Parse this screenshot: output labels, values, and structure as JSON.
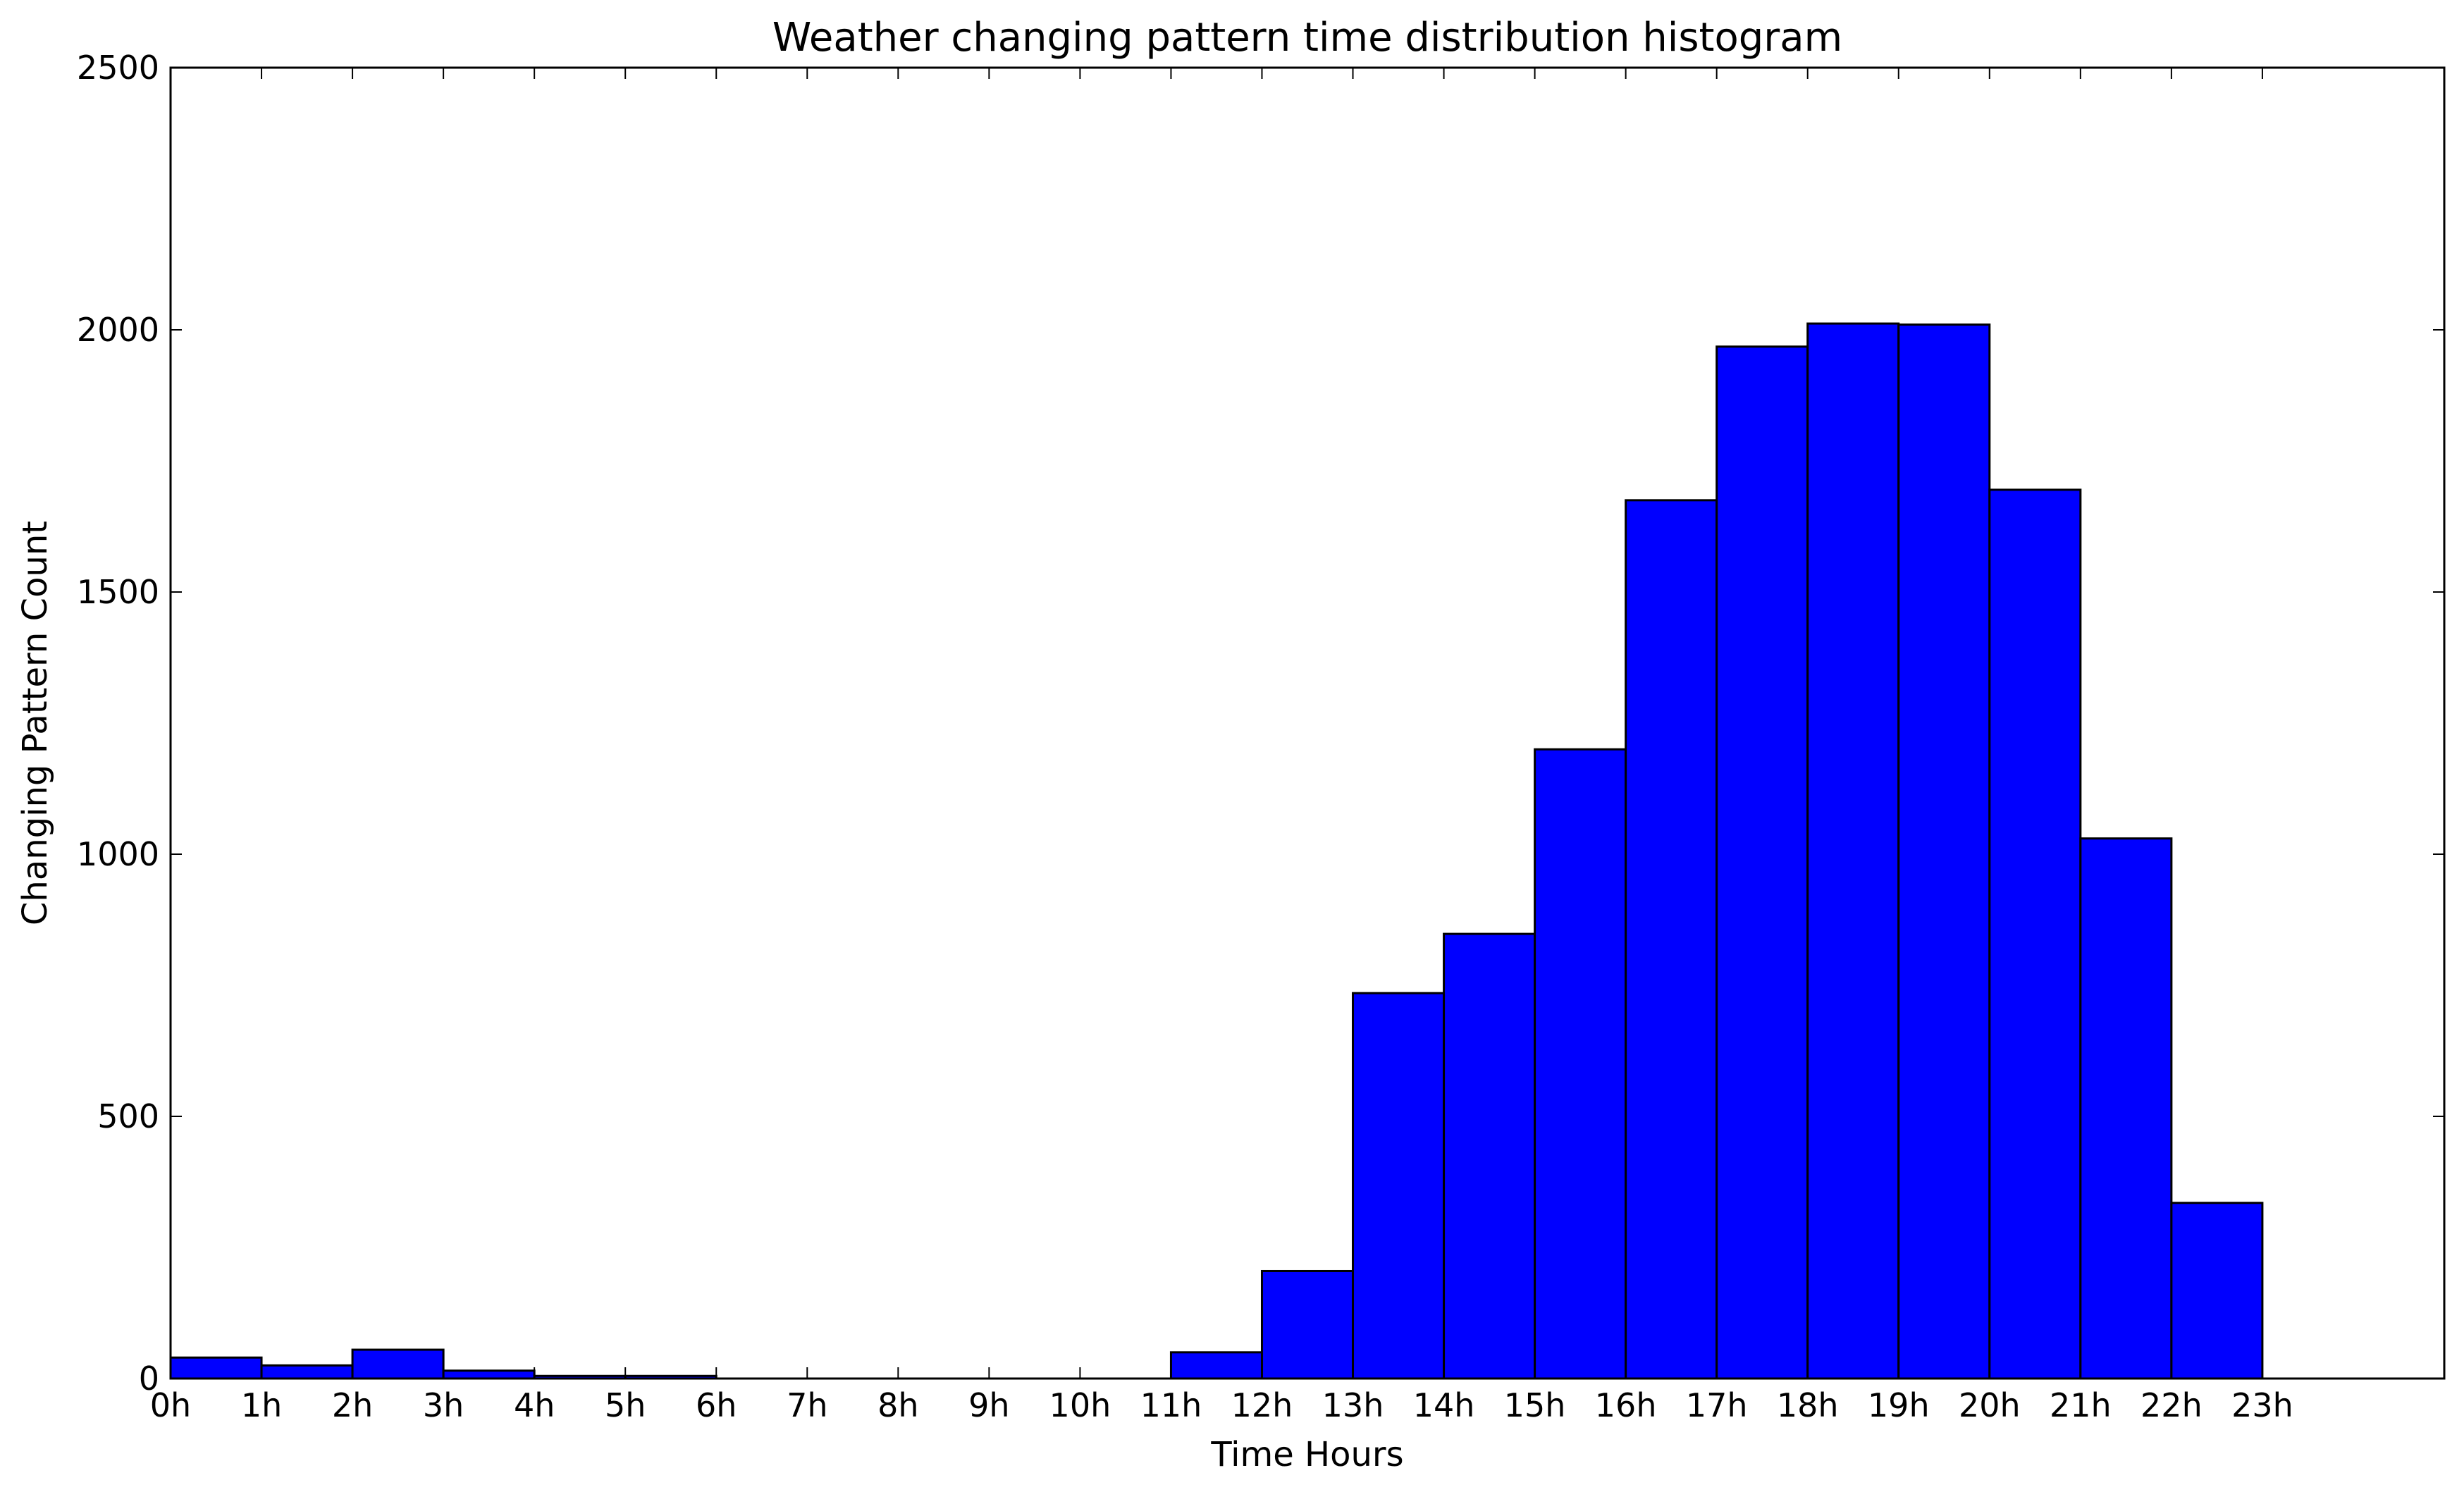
{
  "chart_data": {
    "type": "bar",
    "title": "Weather changing pattern time distribution histogram",
    "xlabel": "Time Hours",
    "ylabel": "Changing Pattern Count",
    "x_tick_labels": [
      "0h",
      "1h",
      "2h",
      "3h",
      "4h",
      "5h",
      "6h",
      "7h",
      "8h",
      "9h",
      "10h",
      "11h",
      "12h",
      "13h",
      "14h",
      "15h",
      "16h",
      "17h",
      "18h",
      "19h",
      "20h",
      "21h",
      "22h",
      "23h"
    ],
    "x_range": [
      0,
      25
    ],
    "ylim": [
      0,
      2500
    ],
    "y_ticks": [
      0,
      500,
      1000,
      1500,
      2000,
      2500
    ],
    "bin_edges": [
      0,
      1,
      2,
      3,
      4,
      5,
      6,
      7,
      8,
      9,
      10,
      11,
      12,
      13,
      14,
      15,
      16,
      17,
      18,
      19,
      20,
      21,
      22,
      23
    ],
    "values": [
      40,
      25,
      55,
      15,
      5,
      5,
      0,
      0,
      0,
      0,
      0,
      50,
      205,
      735,
      848,
      1200,
      1675,
      1968,
      2012,
      2010,
      1695,
      1030,
      335
    ],
    "bar_color": "#0000ff",
    "edge_color": "#000000",
    "grid": false,
    "legend": "none"
  }
}
